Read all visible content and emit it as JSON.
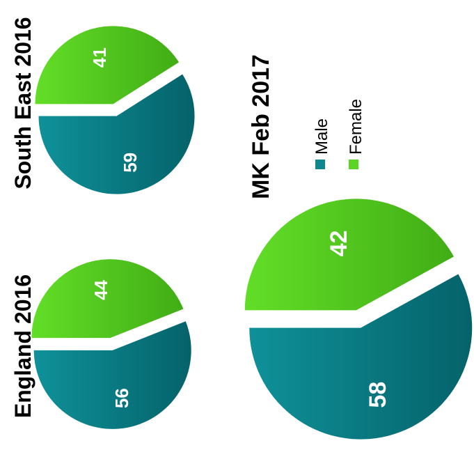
{
  "colors": {
    "male": "#0e8790",
    "male_dark": "#05666d",
    "female": "#5bd423",
    "female_dark": "#43b017"
  },
  "legend": [
    {
      "label": "Male",
      "color": "#0e8790"
    },
    {
      "label": "Female",
      "color": "#5bd423"
    }
  ],
  "chart_data": [
    {
      "type": "pie",
      "title": "England 2016",
      "categories": [
        "Male",
        "Female"
      ],
      "values": [
        56,
        44
      ]
    },
    {
      "type": "pie",
      "title": "South East 2016",
      "categories": [
        "Male",
        "Female"
      ],
      "values": [
        59,
        41
      ]
    },
    {
      "type": "pie",
      "title": "MK Feb 2017",
      "categories": [
        "Male",
        "Female"
      ],
      "values": [
        58,
        42
      ],
      "legend_position": "right"
    }
  ]
}
